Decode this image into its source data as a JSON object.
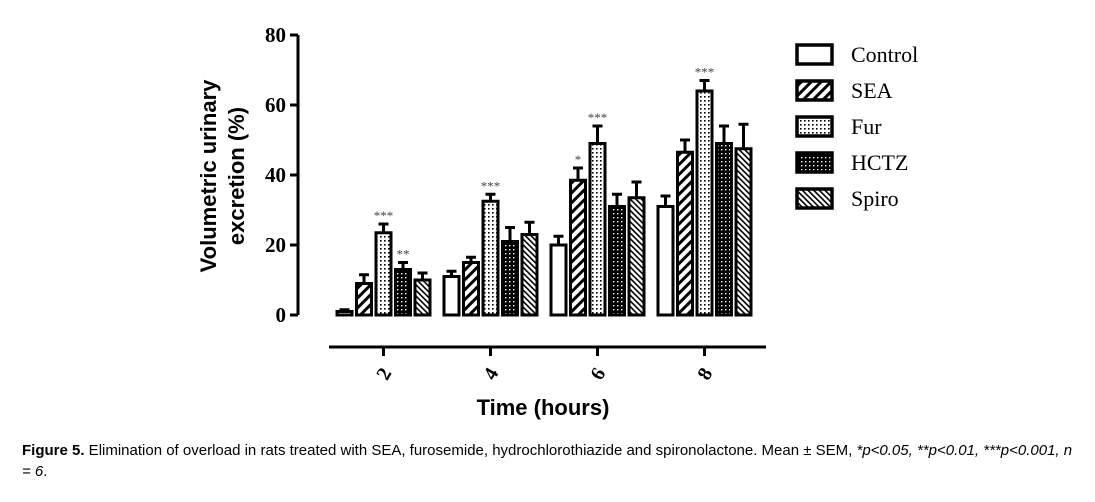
{
  "chart_data": {
    "type": "bar",
    "ylabel_line1": "Volumetric urinary",
    "ylabel_line2": "excretion (%)",
    "xlabel": "Time (hours)",
    "ylim": [
      0,
      80
    ],
    "yticks": [
      0,
      20,
      40,
      60,
      80
    ],
    "categories": [
      "2",
      "4",
      "6",
      "8"
    ],
    "legend_position": "right",
    "series": [
      {
        "name": "Control",
        "pattern": "open",
        "values": [
          1,
          11,
          20,
          31
        ],
        "errors": [
          0.5,
          1.5,
          2.5,
          3
        ],
        "sig": [
          "",
          "",
          "",
          ""
        ]
      },
      {
        "name": "SEA",
        "pattern": "hatch",
        "values": [
          9,
          15,
          38.5,
          46.5
        ],
        "errors": [
          2.5,
          1.5,
          3.5,
          3.5
        ],
        "sig": [
          "",
          "",
          "*",
          ""
        ]
      },
      {
        "name": "Fur",
        "pattern": "dots",
        "values": [
          23.5,
          32.5,
          49,
          64
        ],
        "errors": [
          2.5,
          2,
          5,
          3
        ],
        "sig": [
          "***",
          "***",
          "***",
          "***"
        ]
      },
      {
        "name": "HCTZ",
        "pattern": "grid",
        "values": [
          13,
          21,
          31,
          49
        ],
        "errors": [
          2,
          4,
          3.5,
          5
        ],
        "sig": [
          "**",
          "",
          "",
          ""
        ]
      },
      {
        "name": "Spiro",
        "pattern": "stripe",
        "values": [
          10,
          23,
          33.5,
          47.5
        ],
        "errors": [
          2,
          3.5,
          4.5,
          7
        ],
        "sig": [
          "",
          "",
          "",
          ""
        ]
      }
    ]
  },
  "caption": {
    "label": "Figure 5.",
    "text": " Elimination of overload in rats treated with SEA, furosemide, hydrochlorothiazide and spironolactone. Mean ± SEM, ",
    "stats": "*p<0.05, **p<0.01, ***p<0.001, n = 6",
    "end": "."
  }
}
